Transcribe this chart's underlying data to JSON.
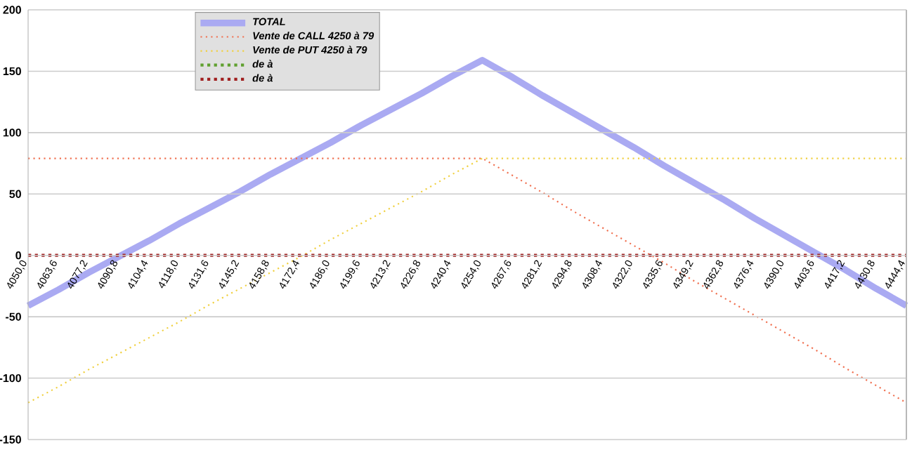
{
  "chart_data": {
    "type": "line",
    "categories": [
      "4050,0",
      "4063,6",
      "4077,2",
      "4090,8",
      "4104,4",
      "4118,0",
      "4131,6",
      "4145,2",
      "4158,8",
      "4172,4",
      "4186,0",
      "4199,6",
      "4213,2",
      "4226,8",
      "4240,4",
      "4254,0",
      "4267,6",
      "4281,2",
      "4294,8",
      "4308,4",
      "4322,0",
      "4335,6",
      "4349,2",
      "4362,8",
      "4376,4",
      "4390,0",
      "4403,6",
      "4417,2",
      "4430,8",
      "4444,4"
    ],
    "series": [
      {
        "name": "TOTAL",
        "color": "#aaaaf2",
        "line_style": "solid",
        "values": [
          -41,
          -28,
          -14,
          -1,
          12,
          26,
          39,
          52,
          66,
          79,
          92,
          106,
          119,
          132,
          146,
          159,
          145,
          130,
          116,
          102,
          88,
          73,
          59,
          45,
          30,
          16,
          2,
          -12,
          -27,
          -41
        ]
      },
      {
        "name": "Vente de CALL 4250 à 79",
        "color": "#f07050",
        "line_style": "dotted",
        "values": [
          79,
          79,
          79,
          79,
          79,
          79,
          79,
          79,
          79,
          79,
          79,
          79,
          79,
          79,
          79,
          79,
          65,
          51,
          36,
          22,
          8,
          -6,
          -21,
          -35,
          -49,
          -63,
          -77,
          -92,
          -106,
          -120
        ]
      },
      {
        "name": "Vente de PUT 4250 à 79",
        "color": "#f0d040",
        "line_style": "dotted",
        "values": [
          -120,
          -107,
          -93,
          -80,
          -67,
          -54,
          -40,
          -27,
          -14,
          -1,
          13,
          26,
          39,
          52,
          66,
          79,
          79,
          79,
          79,
          79,
          79,
          79,
          79,
          79,
          79,
          79,
          79,
          79,
          79,
          79
        ]
      },
      {
        "name": "de  à",
        "color": "#60a030",
        "line_style": "dotted",
        "values": [
          null,
          null,
          null,
          null,
          null,
          null,
          null,
          null,
          null,
          null,
          null,
          null,
          null,
          null,
          null,
          null,
          null,
          null,
          null,
          null,
          null,
          null,
          null,
          null,
          null,
          null,
          null,
          null,
          null,
          null
        ]
      },
      {
        "name": "de  à",
        "color": "#a02020",
        "line_style": "dotted",
        "values": [
          0,
          0,
          0,
          0,
          0,
          0,
          0,
          0,
          0,
          0,
          0,
          0,
          0,
          0,
          0,
          0,
          0,
          0,
          0,
          0,
          0,
          0,
          0,
          0,
          0,
          0,
          0,
          0,
          0,
          0
        ]
      }
    ],
    "ylim": [
      -150,
      200
    ],
    "yticks": [
      -150,
      -100,
      -50,
      0,
      50,
      100,
      150,
      200
    ],
    "grid": "y",
    "legend": "top"
  }
}
